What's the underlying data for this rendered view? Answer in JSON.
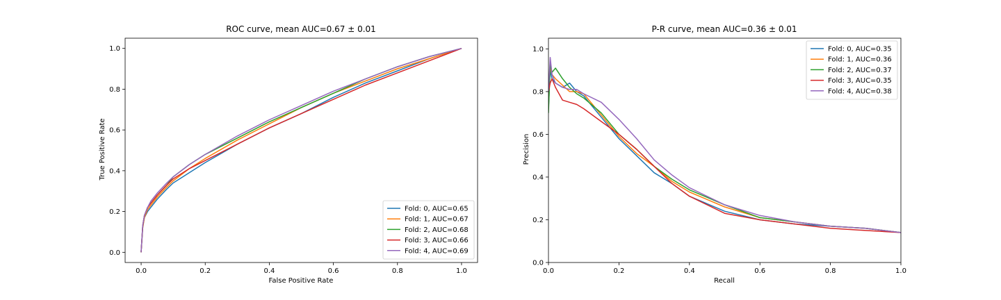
{
  "chart_data": [
    {
      "type": "line",
      "title": "ROC curve, mean AUC=0.67 ± 0.01",
      "xlabel": "False Positive Rate",
      "ylabel": "True Positive Rate",
      "xlim": [
        -0.05,
        1.05
      ],
      "ylim": [
        -0.05,
        1.05
      ],
      "xticks": [
        0.0,
        0.2,
        0.4,
        0.6,
        0.8,
        1.0
      ],
      "yticks": [
        0.0,
        0.2,
        0.4,
        0.6,
        0.8,
        1.0
      ],
      "grid": false,
      "legend_position": "lower-right",
      "series": [
        {
          "name": "Fold: 0, AUC=0.65",
          "color": "#1f77b4",
          "x": [
            0,
            0.005,
            0.01,
            0.02,
            0.03,
            0.05,
            0.08,
            0.1,
            0.15,
            0.2,
            0.3,
            0.4,
            0.5,
            0.6,
            0.7,
            0.8,
            0.9,
            1.0
          ],
          "y": [
            0,
            0.12,
            0.17,
            0.2,
            0.22,
            0.26,
            0.31,
            0.34,
            0.39,
            0.44,
            0.53,
            0.61,
            0.68,
            0.76,
            0.83,
            0.89,
            0.95,
            1.0
          ]
        },
        {
          "name": "Fold: 1, AUC=0.67",
          "color": "#ff7f0e",
          "x": [
            0,
            0.005,
            0.01,
            0.02,
            0.03,
            0.05,
            0.08,
            0.1,
            0.15,
            0.2,
            0.3,
            0.4,
            0.5,
            0.6,
            0.7,
            0.8,
            0.9,
            1.0
          ],
          "y": [
            0,
            0.12,
            0.17,
            0.21,
            0.23,
            0.27,
            0.32,
            0.35,
            0.41,
            0.46,
            0.55,
            0.63,
            0.71,
            0.78,
            0.84,
            0.9,
            0.95,
            1.0
          ]
        },
        {
          "name": "Fold: 2, AUC=0.68",
          "color": "#2ca02c",
          "x": [
            0,
            0.005,
            0.01,
            0.02,
            0.03,
            0.05,
            0.08,
            0.1,
            0.15,
            0.2,
            0.3,
            0.4,
            0.5,
            0.6,
            0.7,
            0.8,
            0.9,
            1.0
          ],
          "y": [
            0,
            0.13,
            0.18,
            0.22,
            0.24,
            0.28,
            0.33,
            0.37,
            0.43,
            0.48,
            0.56,
            0.64,
            0.71,
            0.78,
            0.85,
            0.91,
            0.96,
            1.0
          ]
        },
        {
          "name": "Fold: 3, AUC=0.66",
          "color": "#d62728",
          "x": [
            0,
            0.005,
            0.01,
            0.02,
            0.03,
            0.05,
            0.08,
            0.1,
            0.15,
            0.2,
            0.3,
            0.4,
            0.5,
            0.6,
            0.7,
            0.8,
            0.9,
            1.0
          ],
          "y": [
            0,
            0.13,
            0.18,
            0.22,
            0.24,
            0.28,
            0.33,
            0.36,
            0.41,
            0.45,
            0.53,
            0.61,
            0.68,
            0.75,
            0.82,
            0.88,
            0.94,
            1.0
          ]
        },
        {
          "name": "Fold: 4, AUC=0.69",
          "color": "#9467bd",
          "x": [
            0,
            0.005,
            0.01,
            0.02,
            0.03,
            0.05,
            0.08,
            0.1,
            0.15,
            0.2,
            0.3,
            0.4,
            0.5,
            0.6,
            0.7,
            0.8,
            0.9,
            1.0
          ],
          "y": [
            0,
            0.13,
            0.18,
            0.22,
            0.25,
            0.29,
            0.34,
            0.37,
            0.43,
            0.48,
            0.57,
            0.65,
            0.72,
            0.79,
            0.85,
            0.91,
            0.96,
            1.0
          ]
        }
      ]
    },
    {
      "type": "line",
      "title": "P-R curve, mean AUC=0.36 ± 0.01",
      "xlabel": "Recall",
      "ylabel": "Precision",
      "xlim": [
        0.0,
        1.0
      ],
      "ylim": [
        0.0,
        1.05
      ],
      "xticks": [
        0.0,
        0.2,
        0.4,
        0.6,
        0.8,
        1.0
      ],
      "yticks": [
        0.0,
        0.2,
        0.4,
        0.6,
        0.8,
        1.0
      ],
      "grid": false,
      "legend_position": "upper-right",
      "series": [
        {
          "name": "Fold: 0, AUC=0.35",
          "color": "#1f77b4",
          "x": [
            0,
            0.005,
            0.01,
            0.02,
            0.04,
            0.06,
            0.08,
            0.1,
            0.15,
            0.2,
            0.25,
            0.3,
            0.35,
            0.4,
            0.5,
            0.6,
            0.7,
            0.8,
            0.9,
            1.0
          ],
          "y": [
            0.72,
            0.9,
            0.86,
            0.84,
            0.82,
            0.84,
            0.8,
            0.78,
            0.68,
            0.58,
            0.5,
            0.42,
            0.37,
            0.31,
            0.24,
            0.2,
            0.18,
            0.17,
            0.16,
            0.14
          ]
        },
        {
          "name": "Fold: 1, AUC=0.36",
          "color": "#ff7f0e",
          "x": [
            0,
            0.005,
            0.01,
            0.02,
            0.04,
            0.06,
            0.08,
            0.1,
            0.15,
            0.2,
            0.25,
            0.3,
            0.35,
            0.4,
            0.5,
            0.6,
            0.7,
            0.8,
            0.9,
            1.0
          ],
          "y": [
            0.75,
            0.92,
            0.88,
            0.86,
            0.83,
            0.8,
            0.8,
            0.79,
            0.69,
            0.59,
            0.51,
            0.45,
            0.38,
            0.33,
            0.26,
            0.21,
            0.19,
            0.17,
            0.16,
            0.14
          ]
        },
        {
          "name": "Fold: 2, AUC=0.37",
          "color": "#2ca02c",
          "x": [
            0,
            0.005,
            0.01,
            0.02,
            0.04,
            0.06,
            0.08,
            0.1,
            0.15,
            0.2,
            0.25,
            0.3,
            0.35,
            0.4,
            0.5,
            0.6,
            0.7,
            0.8,
            0.9,
            1.0
          ],
          "y": [
            0.7,
            0.93,
            0.89,
            0.91,
            0.86,
            0.82,
            0.79,
            0.77,
            0.7,
            0.6,
            0.53,
            0.45,
            0.39,
            0.34,
            0.27,
            0.21,
            0.19,
            0.17,
            0.16,
            0.14
          ]
        },
        {
          "name": "Fold: 3, AUC=0.35",
          "color": "#d62728",
          "x": [
            0,
            0.005,
            0.01,
            0.02,
            0.04,
            0.06,
            0.08,
            0.1,
            0.15,
            0.2,
            0.25,
            0.3,
            0.35,
            0.4,
            0.5,
            0.6,
            0.7,
            0.8,
            0.9,
            1.0
          ],
          "y": [
            0.8,
            0.84,
            0.86,
            0.82,
            0.76,
            0.75,
            0.74,
            0.72,
            0.66,
            0.6,
            0.53,
            0.45,
            0.37,
            0.31,
            0.23,
            0.2,
            0.18,
            0.16,
            0.15,
            0.14
          ]
        },
        {
          "name": "Fold: 4, AUC=0.38",
          "color": "#9467bd",
          "x": [
            0,
            0.005,
            0.01,
            0.02,
            0.04,
            0.06,
            0.08,
            0.1,
            0.15,
            0.2,
            0.25,
            0.3,
            0.35,
            0.4,
            0.5,
            0.6,
            0.7,
            0.8,
            0.9,
            1.0
          ],
          "y": [
            0.8,
            0.96,
            0.88,
            0.84,
            0.82,
            0.81,
            0.81,
            0.79,
            0.75,
            0.67,
            0.58,
            0.48,
            0.41,
            0.35,
            0.27,
            0.22,
            0.19,
            0.17,
            0.16,
            0.14
          ]
        }
      ]
    }
  ]
}
